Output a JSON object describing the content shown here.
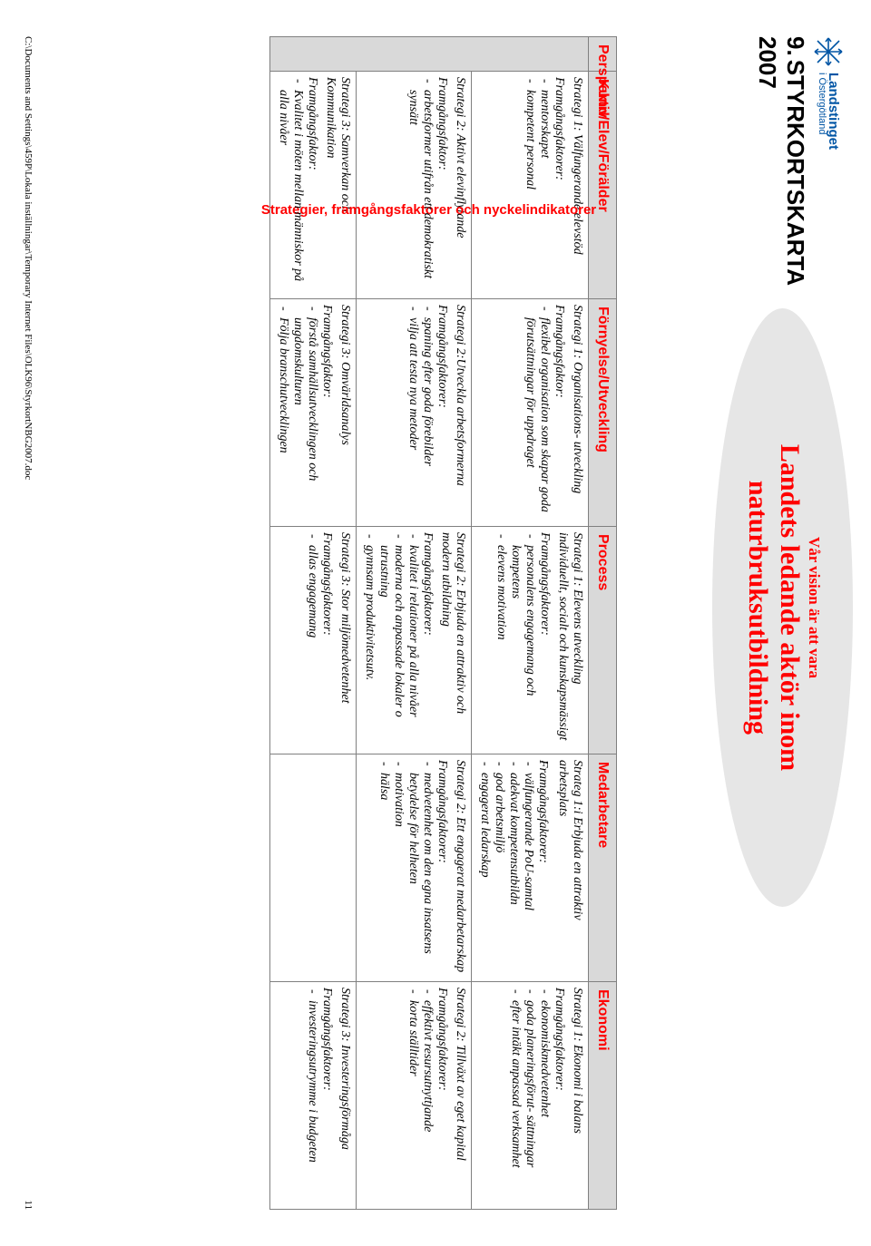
{
  "logo": {
    "top": "Landstinget",
    "sub": "i Östergötland"
  },
  "section_number": "9.",
  "section_title": "STYRKORTSKARTA",
  "section_year": "2007",
  "vision_pre": "Vår vision är att vara",
  "vision_main": "Landets ledande aktör inom naturbruksutbildning",
  "headers": {
    "perspektiv": "Perspektiv",
    "col1": "Kund/Elev/Förälder",
    "col2": "Förnyelse/Utveckling",
    "col3": "Process",
    "col4": "Medarbetare",
    "col5": "Ekonomi"
  },
  "sidehead": "Strategier, framgångsfaktorer och nyckelindikatorer",
  "factors_label": "Framgångsfaktorer:",
  "factors_label_sg": "Framgångsfaktor:",
  "row1": {
    "kund": {
      "strategi": "Strategi 1: Välfungerande elevstöd",
      "factors": [
        "mentorskapet",
        "kompetent personal"
      ]
    },
    "fornyelse": {
      "strategi": "Strategi 1: Organisations- utveckling",
      "factors": [
        "flexibel organisation som skapar goda förutsättningar för uppdraget"
      ]
    },
    "process": {
      "strategi": "Strategi 1: Elevens utveckling individuellt, socialt och kunskapsmässigt",
      "factors": [
        "personalens engagemang och kompetens",
        "elevens motivation"
      ]
    },
    "medarbetare": {
      "strategi": "Strateg 1:i Erbjuda en attraktiv arbetsplats",
      "factors": [
        "välfungerande PoU-samtal",
        "adekvat kompetensutbildn",
        "god arbetsmiljö",
        "engagerat ledarskap"
      ]
    },
    "ekonomi": {
      "strategi": "Strategi 1: Ekonomi i balans",
      "factors": [
        "ekonomiskmedvetenhet",
        "goda planeringsförut- sättningar",
        "efter intäkt anpassad verksamhet"
      ]
    }
  },
  "row2": {
    "kund": {
      "strategi": "Strategi 2: Aktivt elevinflytande",
      "factors": [
        "arbetsformer utifrån ett demokratiskt synsätt"
      ]
    },
    "fornyelse": {
      "strategi": "Strategi 2:Utveckla arbetsformerna",
      "factors": [
        "spaning efter goda förebilder",
        "vilja att testa nya metoder"
      ]
    },
    "process": {
      "strategi": "Strategi 2: Erbjuda en attraktiv och modern utbildning",
      "factors": [
        "kvalitet i relationer på alla nivåer",
        "moderna och anpassade lokaler o utrustning",
        "gynnsam produktivitetsutv."
      ]
    },
    "medarbetare": {
      "strategi": "Strategi 2: Ett engagerat medarbetarskap",
      "factors": [
        "medvetenhet om den egna insatsens betydelse för helheten",
        "motivation",
        "hälsa"
      ]
    },
    "ekonomi": {
      "strategi": "Strategi 2: Tillväxt av eget kapital",
      "factors": [
        "effektivt resursutnyttjande",
        "korta ställtider"
      ]
    }
  },
  "row3": {
    "kund": {
      "strategi": "Strategi 3: Samverkan och Kommunikation",
      "factors": [
        "Kvalitet i möten mellan människor på alla nivåer"
      ]
    },
    "fornyelse": {
      "strategi": "Strategi 3: Omvärldsanalys",
      "factors": [
        "förstå samhällsutvecklingen och ungdomskulturen",
        "Följa branschutvecklingen"
      ]
    },
    "process": {
      "strategi": "Strategi 3: Stor miljömedvetenhet",
      "factors": [
        "allas engagemang"
      ]
    },
    "medarbetare": {
      "strategi": "",
      "factors": []
    },
    "ekonomi": {
      "strategi": "Strategi 3: Investeringsförmåga",
      "factors": [
        "investeringsutrymme i budgeten"
      ]
    }
  },
  "footer_path": "C:\\Documents and Settings\\459P\\Lokala inställningar\\Temporary Internet Files\\OLK96\\StyrkortNBG2007.doc",
  "page_number": "11",
  "style": {
    "accent_red": "#ff0000",
    "logo_blue": "#0055a5",
    "header_bg": "#d9d9d9",
    "ellipse_bg": "#e6e6e6",
    "border": "#808080"
  }
}
